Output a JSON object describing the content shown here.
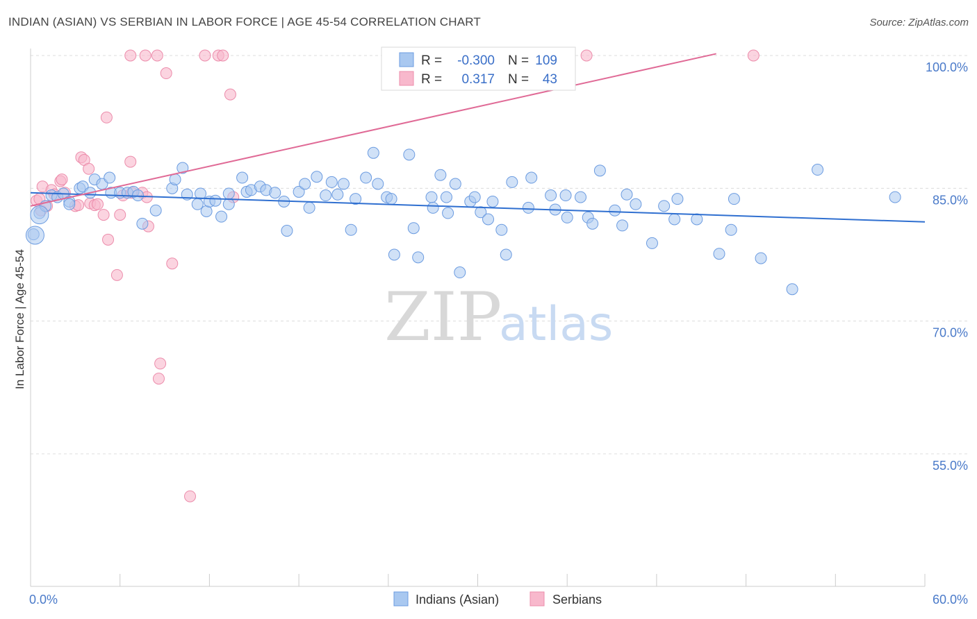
{
  "chart_data": {
    "type": "scatter",
    "title": "INDIAN (ASIAN) VS SERBIAN IN LABOR FORCE | AGE 45-54 CORRELATION CHART",
    "source": "Source: ZipAtlas.com",
    "ylabel": "In Labor Force | Age 45-54",
    "xlim": [
      0,
      60
    ],
    "ylim": [
      40,
      102
    ],
    "x_tick_labels": {
      "left": "0.0%",
      "right": "60.0%"
    },
    "y_ticks": [
      {
        "value": 100,
        "label": "100.0%"
      },
      {
        "value": 85,
        "label": "85.0%"
      },
      {
        "value": 70,
        "label": "70.0%"
      },
      {
        "value": 55,
        "label": "55.0%"
      }
    ],
    "watermark": {
      "zip": "ZIP",
      "atlas": "atlas"
    },
    "legend": {
      "rows": [
        {
          "r_label": "R =",
          "r_value": "-0.300",
          "n_label": "N =",
          "n_value": "109"
        },
        {
          "r_label": "R =",
          "r_value": "0.317",
          "n_label": "N =",
          "n_value": "43"
        }
      ]
    },
    "colors": {
      "blue_fill": "#a9c8f0",
      "blue_stroke": "#6b9be0",
      "blue_line": "#2f6fd0",
      "pink_fill": "#f8b8cc",
      "pink_stroke": "#ec8cab",
      "pink_line": "#e06a96"
    },
    "series": [
      {
        "name": "Indians (Asian)",
        "trend": {
          "x0": 0,
          "y0": 84.5,
          "x1": 60,
          "y1": 81.2
        },
        "points": [
          [
            0.2,
            79.8
          ],
          [
            0.6,
            82.2
          ],
          [
            1.0,
            83.0
          ],
          [
            1.4,
            84.2
          ],
          [
            1.8,
            84.0
          ],
          [
            2.2,
            84.4
          ],
          [
            2.6,
            83.5
          ],
          [
            2.6,
            83.2
          ],
          [
            3.3,
            85.0
          ],
          [
            3.5,
            85.2
          ],
          [
            4.0,
            84.5
          ],
          [
            4.3,
            86.0
          ],
          [
            4.8,
            85.5
          ],
          [
            5.3,
            86.2
          ],
          [
            5.4,
            84.5
          ],
          [
            6.0,
            84.5
          ],
          [
            6.5,
            84.5
          ],
          [
            6.9,
            84.6
          ],
          [
            7.2,
            84.2
          ],
          [
            7.5,
            81.0
          ],
          [
            8.4,
            82.5
          ],
          [
            9.5,
            85.0
          ],
          [
            9.7,
            86.0
          ],
          [
            10.2,
            87.3
          ],
          [
            10.5,
            84.3
          ],
          [
            11.2,
            83.2
          ],
          [
            11.4,
            84.4
          ],
          [
            11.8,
            82.4
          ],
          [
            12.0,
            83.5
          ],
          [
            12.4,
            83.6
          ],
          [
            12.8,
            81.8
          ],
          [
            13.3,
            83.2
          ],
          [
            13.3,
            84.4
          ],
          [
            14.2,
            86.2
          ],
          [
            14.5,
            84.6
          ],
          [
            14.8,
            84.8
          ],
          [
            15.4,
            85.2
          ],
          [
            15.8,
            84.8
          ],
          [
            16.4,
            84.5
          ],
          [
            17.0,
            83.5
          ],
          [
            17.2,
            80.2
          ],
          [
            18.0,
            84.6
          ],
          [
            18.4,
            85.5
          ],
          [
            18.7,
            82.8
          ],
          [
            19.2,
            86.3
          ],
          [
            19.8,
            84.2
          ],
          [
            20.2,
            85.7
          ],
          [
            20.6,
            84.3
          ],
          [
            21.0,
            85.5
          ],
          [
            21.5,
            80.3
          ],
          [
            21.8,
            83.8
          ],
          [
            22.5,
            86.2
          ],
          [
            23.0,
            89.0
          ],
          [
            23.3,
            85.5
          ],
          [
            23.9,
            84.0
          ],
          [
            24.2,
            83.8
          ],
          [
            24.4,
            77.5
          ],
          [
            25.4,
            88.8
          ],
          [
            25.7,
            80.5
          ],
          [
            26.0,
            77.2
          ],
          [
            26.9,
            84.0
          ],
          [
            27.0,
            82.8
          ],
          [
            27.5,
            86.5
          ],
          [
            27.9,
            84.0
          ],
          [
            28.0,
            82.2
          ],
          [
            28.5,
            85.5
          ],
          [
            28.8,
            75.5
          ],
          [
            29.5,
            83.5
          ],
          [
            29.8,
            84.0
          ],
          [
            30.2,
            82.3
          ],
          [
            30.7,
            81.5
          ],
          [
            31.0,
            83.5
          ],
          [
            31.6,
            80.3
          ],
          [
            31.9,
            77.5
          ],
          [
            32.3,
            85.7
          ],
          [
            33.4,
            82.8
          ],
          [
            33.6,
            86.2
          ],
          [
            34.9,
            84.2
          ],
          [
            35.2,
            82.6
          ],
          [
            35.9,
            84.2
          ],
          [
            36.0,
            81.7
          ],
          [
            36.9,
            84.0
          ],
          [
            37.4,
            81.7
          ],
          [
            37.7,
            81.0
          ],
          [
            38.2,
            87.0
          ],
          [
            39.2,
            82.5
          ],
          [
            39.7,
            80.8
          ],
          [
            40.0,
            84.3
          ],
          [
            40.6,
            83.2
          ],
          [
            41.7,
            78.8
          ],
          [
            42.5,
            83.0
          ],
          [
            43.2,
            81.5
          ],
          [
            43.4,
            83.8
          ],
          [
            44.7,
            81.5
          ],
          [
            46.2,
            77.6
          ],
          [
            47.0,
            80.3
          ],
          [
            47.2,
            83.8
          ],
          [
            49.0,
            77.1
          ],
          [
            51.1,
            73.6
          ],
          [
            52.8,
            87.1
          ],
          [
            58.0,
            84.0
          ]
        ],
        "large_points": [
          [
            0.3,
            79.7
          ],
          [
            0.6,
            82.0
          ]
        ]
      },
      {
        "name": "Serbians",
        "trend": {
          "x0": 0,
          "y0": 83.0,
          "x1": 46.0,
          "y1": 100.2
        },
        "points": [
          [
            0.4,
            83.6
          ],
          [
            0.6,
            83.8
          ],
          [
            0.7,
            82.5
          ],
          [
            0.8,
            85.2
          ],
          [
            1.1,
            83.0
          ],
          [
            1.4,
            84.8
          ],
          [
            1.6,
            84.3
          ],
          [
            2.0,
            85.8
          ],
          [
            2.1,
            86.0
          ],
          [
            2.3,
            84.5
          ],
          [
            3.0,
            83.0
          ],
          [
            3.2,
            83.1
          ],
          [
            3.4,
            88.5
          ],
          [
            3.6,
            88.2
          ],
          [
            3.9,
            87.2
          ],
          [
            4.0,
            83.3
          ],
          [
            4.3,
            83.1
          ],
          [
            4.5,
            83.2
          ],
          [
            4.9,
            82.0
          ],
          [
            5.1,
            93.0
          ],
          [
            5.2,
            79.2
          ],
          [
            5.8,
            75.2
          ],
          [
            6.0,
            82.0
          ],
          [
            6.2,
            84.2
          ],
          [
            6.7,
            100.0
          ],
          [
            6.7,
            88.0
          ],
          [
            6.8,
            84.5
          ],
          [
            7.5,
            84.5
          ],
          [
            7.7,
            100.0
          ],
          [
            7.8,
            84.0
          ],
          [
            7.9,
            80.7
          ],
          [
            8.5,
            100.0
          ],
          [
            8.6,
            63.5
          ],
          [
            8.7,
            65.2
          ],
          [
            9.1,
            98.0
          ],
          [
            9.5,
            76.5
          ],
          [
            10.7,
            50.2
          ],
          [
            11.7,
            100.0
          ],
          [
            12.6,
            100.0
          ],
          [
            12.9,
            100.0
          ],
          [
            13.4,
            95.6
          ],
          [
            13.6,
            84.0
          ],
          [
            37.3,
            100.0
          ],
          [
            48.5,
            100.0
          ]
        ]
      }
    ]
  },
  "bottom_legend": {
    "items": [
      {
        "label": "Indians (Asian)"
      },
      {
        "label": "Serbians"
      }
    ]
  }
}
